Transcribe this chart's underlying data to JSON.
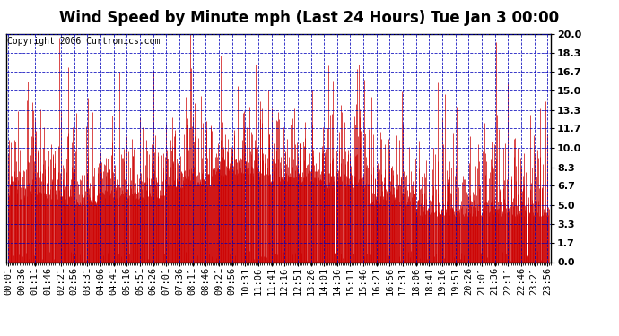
{
  "title": "Wind Speed by Minute mph (Last 24 Hours) Tue Jan 3 00:00",
  "copyright": "Copyright 2006 Curtronics.com",
  "yticks": [
    0.0,
    1.7,
    3.3,
    5.0,
    6.7,
    8.3,
    10.0,
    11.7,
    13.3,
    15.0,
    16.7,
    18.3,
    20.0
  ],
  "ymax": 20.0,
  "ymin": 0.0,
  "bar_color": "#cc0000",
  "background_color": "#ffffff",
  "plot_bg_color": "#ffffff",
  "grid_color": "#0000bb",
  "border_color": "#000000",
  "title_fontsize": 12,
  "copyright_fontsize": 7,
  "tick_label_fontsize": 7.5,
  "x_tick_start": 1,
  "x_tick_step": 35,
  "n_minutes": 1440,
  "random_seed": 12345
}
